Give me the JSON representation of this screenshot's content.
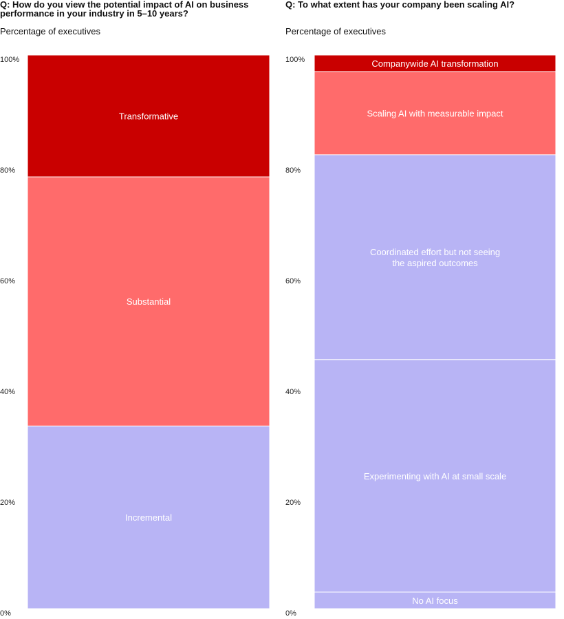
{
  "chart_data": [
    {
      "type": "bar",
      "stacked": true,
      "title": "Q: How do you view the potential impact of AI on business performance in your industry in 5–10 years?",
      "subtitle": "Percentage of executives",
      "ylim": [
        0,
        100
      ],
      "yticks": [
        "0%",
        "20%",
        "40%",
        "60%",
        "80%",
        "100%"
      ],
      "series": [
        {
          "name": "Incremental",
          "value": 33,
          "color": "#b8b4f5"
        },
        {
          "name": "Substantial",
          "value": 45,
          "color": "#ff6b6b"
        },
        {
          "name": "Transformative",
          "value": 22,
          "color": "#c90000"
        }
      ]
    },
    {
      "type": "bar",
      "stacked": true,
      "title": "Q: To what extent has your company been scaling AI?",
      "subtitle": "Percentage of executives",
      "ylim": [
        0,
        100
      ],
      "yticks": [
        "0%",
        "20%",
        "40%",
        "60%",
        "80%",
        "100%"
      ],
      "series": [
        {
          "name": "No AI focus",
          "value": 3,
          "color": "#b8b4f5"
        },
        {
          "name": "Experimenting with AI at small scale",
          "value": 42,
          "color": "#b8b4f5"
        },
        {
          "name": "Coordinated effort but not seeing the aspired outcomes",
          "value": 37,
          "color": "#b8b4f5"
        },
        {
          "name": "Scaling AI with measurable impact",
          "value": 15,
          "color": "#ff6b6b"
        },
        {
          "name": "Companywide AI transformation",
          "value": 3,
          "color": "#c90000"
        }
      ]
    }
  ]
}
